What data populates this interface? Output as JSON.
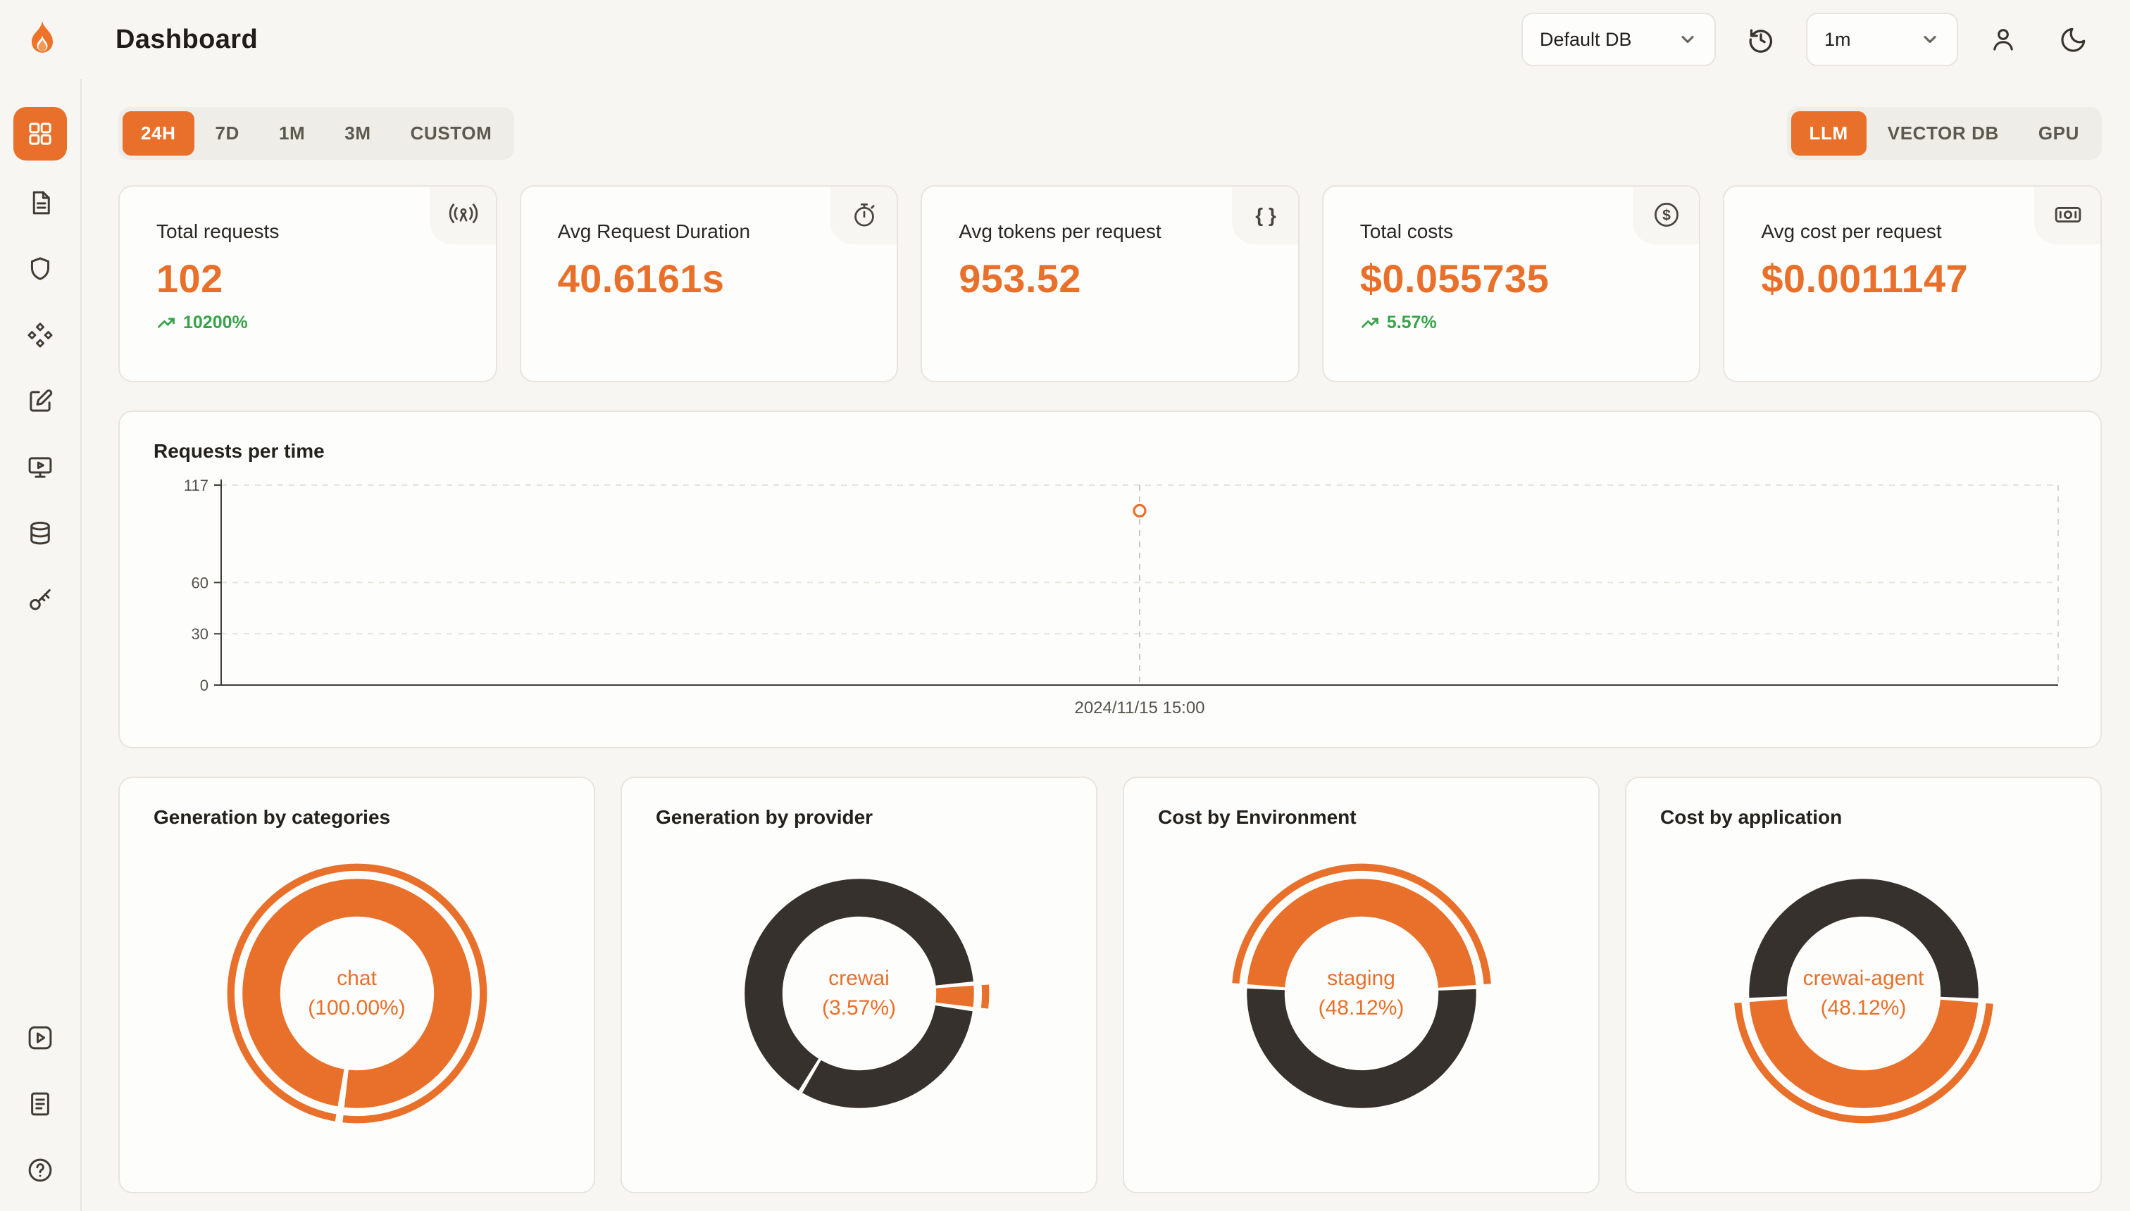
{
  "app": {
    "accent_color": "#e8702a",
    "dark_color": "#36312c",
    "green_color": "#3aa24c"
  },
  "header": {
    "title": "Dashboard",
    "database_select": {
      "value": "Default DB"
    },
    "interval_select": {
      "value": "1m"
    }
  },
  "sidebar": {
    "active": "dashboard",
    "top_items": [
      "dashboard",
      "requests",
      "exceptions",
      "traces",
      "prompts",
      "playground",
      "databases",
      "api-keys"
    ],
    "bottom_items": [
      "getting-started",
      "documentation",
      "help"
    ]
  },
  "filters": {
    "time_ranges": [
      "24H",
      "7D",
      "1M",
      "3M",
      "CUSTOM"
    ],
    "active_time_range": "24H",
    "sources": [
      "LLM",
      "VECTOR DB",
      "GPU"
    ],
    "active_source": "LLM"
  },
  "stats": [
    {
      "label": "Total requests",
      "value": "102",
      "delta": "10200%",
      "icon": "broadcast-icon"
    },
    {
      "label": "Avg Request Duration",
      "value": "40.6161s",
      "icon": "stopwatch-icon"
    },
    {
      "label": "Avg tokens per request",
      "value": "953.52",
      "icon": "braces-icon",
      "icon_glyph": "{ }"
    },
    {
      "label": "Total costs",
      "value": "$0.055735",
      "delta": "5.57%",
      "icon": "dollar-icon",
      "icon_glyph": "$"
    },
    {
      "label": "Avg cost per request",
      "value": "$0.0011147",
      "icon": "cash-icon"
    }
  ],
  "chart_data": [
    {
      "type": "line",
      "title": "Requests per time",
      "x": [
        "2024/11/15 15:00"
      ],
      "values": [
        102
      ],
      "ylim": [
        0,
        117
      ],
      "yticks": [
        0,
        30,
        60,
        117
      ],
      "grid": "dashed",
      "legend": "none",
      "point_color": "#e8702a",
      "axis_color": "#403c36"
    },
    {
      "type": "pie",
      "title": "Generation by categories",
      "center_line1": "chat",
      "center_line2": "(100.00%)",
      "start_angle": 188,
      "segments": [
        {
          "label": "chat",
          "value": 100.0,
          "color": "#e8702a",
          "highlight": true
        }
      ]
    },
    {
      "type": "pie",
      "title": "Generation by provider",
      "center_line1": "crewai",
      "center_line2": "(3.57%)",
      "start_angle": 85,
      "segments": [
        {
          "label": "crewai",
          "value": 3.57,
          "color": "#e8702a",
          "highlight": true
        },
        {
          "label": "",
          "value": 31.4,
          "color": "#36312c"
        },
        {
          "label": "",
          "value": 65.03,
          "color": "#36312c"
        }
      ]
    },
    {
      "type": "pie",
      "title": "Cost by Environment",
      "center_line1": "staging",
      "center_line2": "(48.12%)",
      "start_angle": 273.5,
      "segments": [
        {
          "label": "staging",
          "value": 48.12,
          "color": "#e8702a",
          "highlight": true
        },
        {
          "label": "",
          "value": 51.88,
          "color": "#36312c"
        }
      ]
    },
    {
      "type": "pie",
      "title": "Cost by application",
      "center_line1": "crewai-agent",
      "center_line2": "(48.12%)",
      "start_angle": 93.5,
      "segments": [
        {
          "label": "crewai-agent",
          "value": 48.12,
          "color": "#e8702a",
          "highlight": true
        },
        {
          "label": "",
          "value": 51.88,
          "color": "#36312c"
        }
      ]
    }
  ]
}
